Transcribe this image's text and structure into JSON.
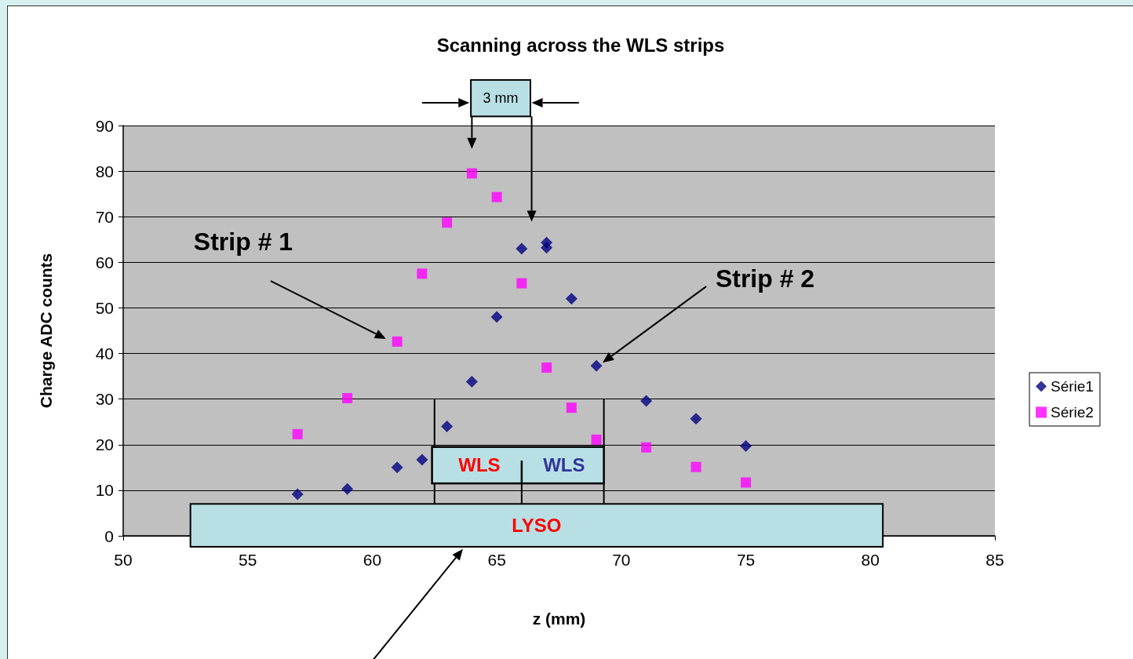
{
  "chart_data": {
    "type": "scatter",
    "title": "Scanning across the WLS strips",
    "xlabel": "z (mm)",
    "ylabel": "Charge ADC counts",
    "xlim": [
      50,
      85
    ],
    "xticks": [
      50,
      55,
      60,
      65,
      70,
      75,
      80,
      85
    ],
    "ylim": [
      0,
      90
    ],
    "yticks": [
      0,
      10,
      20,
      30,
      40,
      50,
      60,
      70,
      80,
      90
    ],
    "grid": "y",
    "legend": "right",
    "series": [
      {
        "name": "Série1",
        "color": "#000080",
        "marker": "diamond",
        "x": [
          57,
          59,
          61,
          62,
          63,
          64,
          65,
          66,
          67,
          67,
          68,
          69,
          71,
          73,
          75
        ],
        "values": [
          9.1,
          10.3,
          15,
          16.7,
          24,
          33.8,
          48,
          63,
          64.3,
          63.2,
          52,
          37.3,
          29.6,
          25.7,
          19.7
        ]
      },
      {
        "name": "Série2",
        "color": "#ff00ff",
        "marker": "square",
        "x": [
          57,
          59,
          61,
          62,
          63,
          64,
          65,
          66,
          67,
          68,
          69,
          71,
          73,
          75
        ],
        "values": [
          22.3,
          30.2,
          42.6,
          57.5,
          68.7,
          79.5,
          74.3,
          55.4,
          36.9,
          28.1,
          21.1,
          19.4,
          15.1,
          11.7
        ]
      }
    ],
    "annotations": [
      "Strip # 1",
      "Strip # 2",
      "3 mm",
      "WLS",
      "WLS",
      "LYSO"
    ]
  }
}
